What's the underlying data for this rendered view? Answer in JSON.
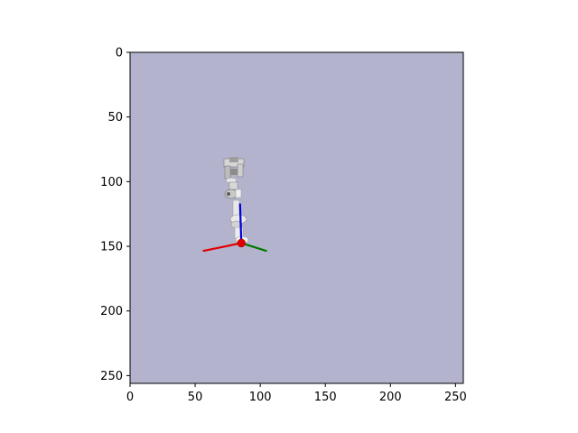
{
  "figure": {
    "background": "#ffffff",
    "panel_color": "#b3b3cd",
    "frame_color": "#000000"
  },
  "chart_data": {
    "type": "image",
    "title": "",
    "xlabel": "",
    "ylabel": "",
    "xlim": [
      0,
      256
    ],
    "ylim": [
      256,
      0
    ],
    "xticks": [
      0,
      50,
      100,
      150,
      200,
      250
    ],
    "yticks": [
      0,
      50,
      100,
      150,
      200,
      250
    ],
    "xtick_labels": [
      "0",
      "50",
      "100",
      "150",
      "200",
      "250"
    ],
    "ytick_labels": [
      "0",
      "50",
      "100",
      "150",
      "200",
      "250"
    ],
    "grid": false,
    "robot_base": {
      "x": 85.5,
      "y": 147.5
    },
    "axes_overlay": [
      {
        "name": "x-axis",
        "color": "#e00000",
        "from": [
          85.5,
          147.5
        ],
        "to": [
          56.5,
          153.5
        ]
      },
      {
        "name": "y-axis",
        "color": "#007a00",
        "from": [
          85.5,
          147.5
        ],
        "to": [
          104.5,
          153.5
        ]
      },
      {
        "name": "z-axis",
        "color": "#0000dd",
        "from": [
          85.5,
          147.5
        ],
        "to": [
          84.5,
          117.5
        ]
      }
    ]
  }
}
